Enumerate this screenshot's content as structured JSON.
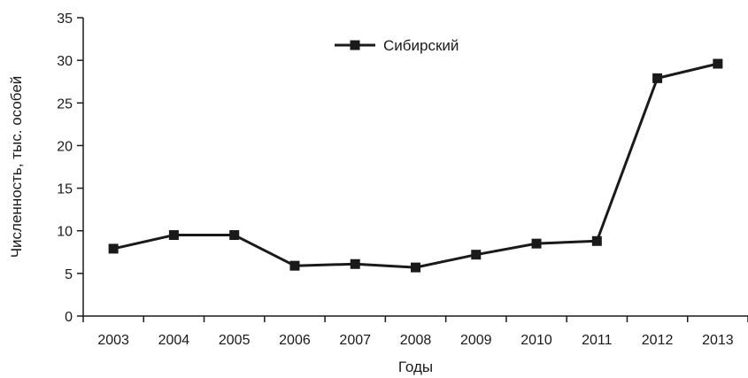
{
  "chart_data": {
    "type": "line",
    "title": "",
    "xlabel": "Годы",
    "ylabel": "Численность, тыс. особей",
    "categories": [
      "2003",
      "2004",
      "2005",
      "2006",
      "2007",
      "2008",
      "2009",
      "2010",
      "2011",
      "2012",
      "2013"
    ],
    "series": [
      {
        "name": "Сибирский",
        "values": [
          7.9,
          9.5,
          9.5,
          5.9,
          6.1,
          5.7,
          7.2,
          8.5,
          8.8,
          27.9,
          29.6
        ],
        "color": "#1a1a1a",
        "marker": "square"
      }
    ],
    "ylim": [
      0,
      35
    ],
    "yticks": [
      0,
      5,
      10,
      15,
      20,
      25,
      30,
      35
    ],
    "grid": false,
    "legend_position": "top-center"
  }
}
